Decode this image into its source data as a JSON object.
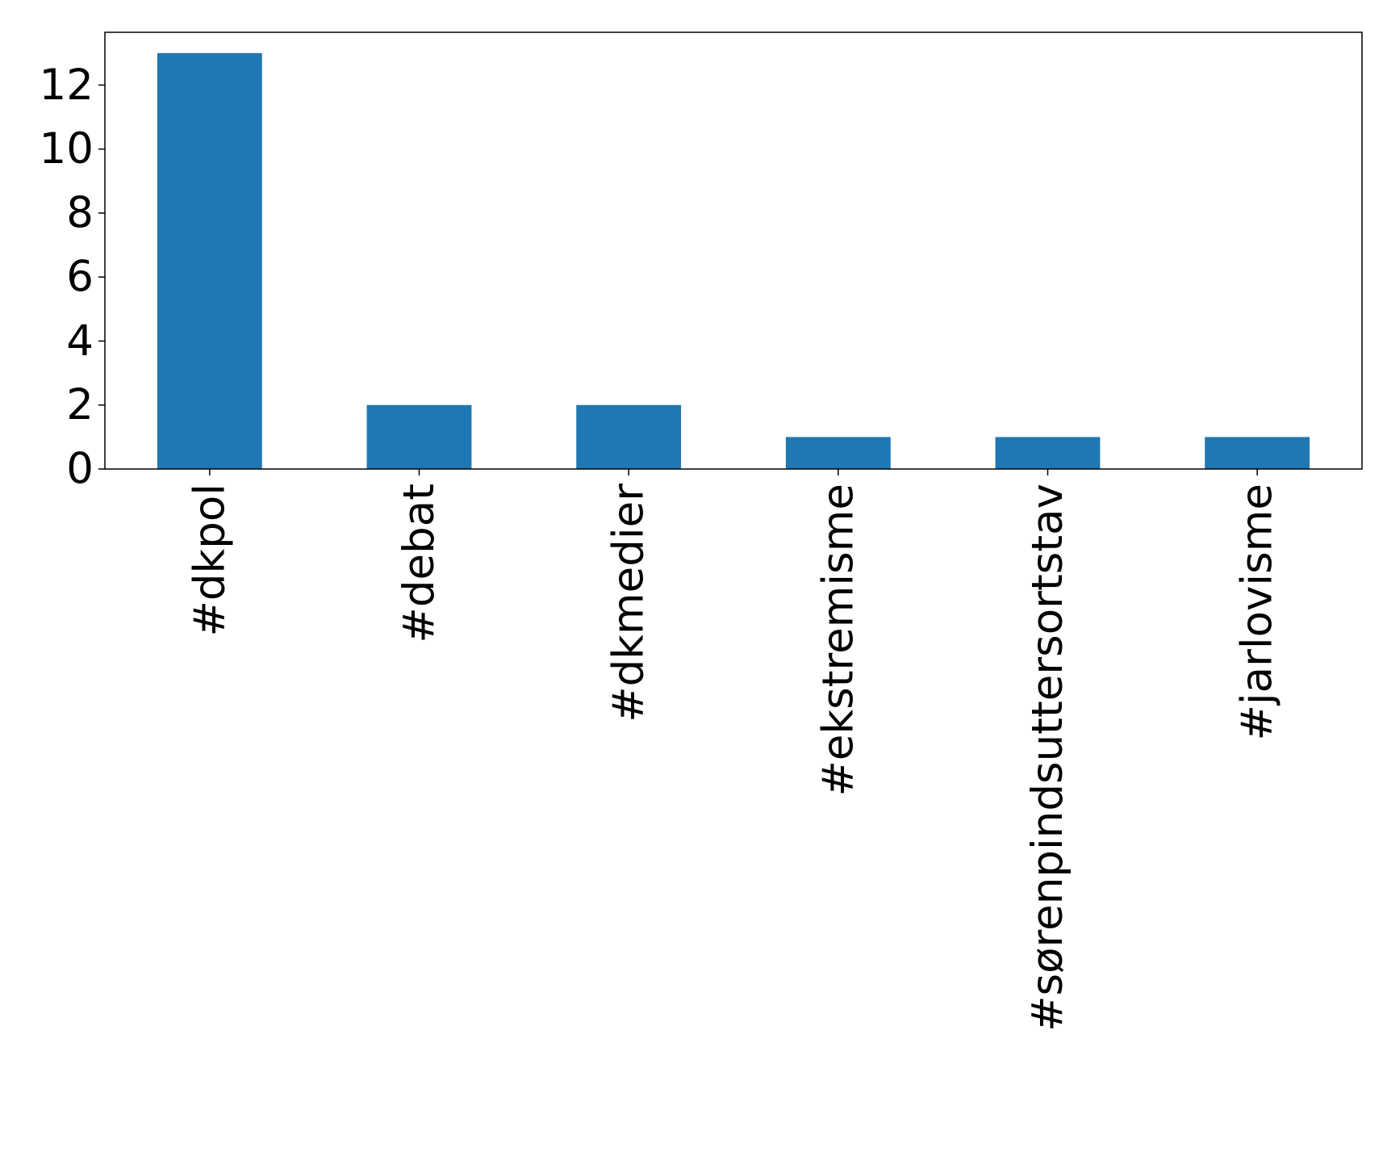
{
  "chart_data": {
    "type": "bar",
    "categories": [
      "#dkpol",
      "#debat",
      "#dkmedier",
      "#ekstremisme",
      "#sørenpindsuttersortstav",
      "#jarlovisme"
    ],
    "values": [
      13,
      2,
      2,
      1,
      1,
      1
    ],
    "color": "#1f77b4",
    "ylim": [
      0,
      13.65
    ],
    "yticks": [
      0,
      2,
      4,
      6,
      8,
      10,
      12
    ],
    "grid": false
  }
}
